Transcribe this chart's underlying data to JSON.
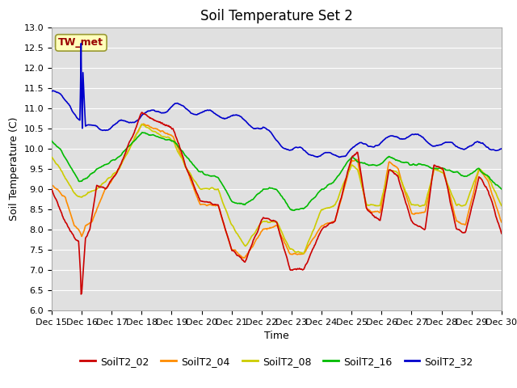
{
  "title": "Soil Temperature Set 2",
  "xlabel": "Time",
  "ylabel": "Soil Temperature (C)",
  "ylim": [
    6.0,
    13.0
  ],
  "yticks": [
    6.0,
    6.5,
    7.0,
    7.5,
    8.0,
    8.5,
    9.0,
    9.5,
    10.0,
    10.5,
    11.0,
    11.5,
    12.0,
    12.5,
    13.0
  ],
  "colors": {
    "SoilT2_02": "#cc0000",
    "SoilT2_04": "#ff8c00",
    "SoilT2_08": "#cccc00",
    "SoilT2_16": "#00bb00",
    "SoilT2_32": "#0000cc"
  },
  "annotation_label": "TW_met",
  "plot_bg_color": "#e0e0e0",
  "grid_color": "#ffffff",
  "title_fontsize": 12,
  "axis_fontsize": 9,
  "tick_fontsize": 8,
  "legend_fontsize": 9
}
